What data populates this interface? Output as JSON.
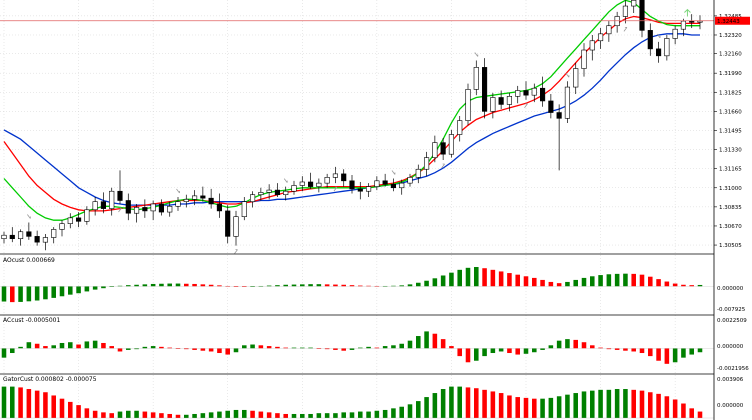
{
  "colors": {
    "bull": "#008000",
    "bear": "#ff0000",
    "jaw": "#0033cc",
    "teeth": "#ff0000",
    "lips": "#00cc00",
    "price_line": "#e06060",
    "grid": "#c8c8c8",
    "fractal": "#9a9a9a",
    "signal_arrow": "#7cd67c"
  },
  "main_panel": {
    "price_axis": [
      "1.32485",
      "1.32320",
      "1.32160",
      "1.31990",
      "1.31825",
      "1.31660",
      "1.31495",
      "1.31330",
      "1.31165",
      "1.31000",
      "1.30835",
      "1.30670",
      "1.30505"
    ],
    "current_price": "1.32443",
    "price_min": 1.30445,
    "price_max": 1.32605,
    "current_price_value": 1.32443
  },
  "indicators": [
    {
      "name": "ac",
      "label": "AOcust 0.000669",
      "axis": [
        "0.000000",
        "-0.007925"
      ],
      "scale_min": -0.0122,
      "scale_max": 0.0101,
      "zero": 0
    },
    {
      "name": "ao",
      "label": "ACcust -0.0005001",
      "axis": [
        "0.0022509",
        "0.000000",
        "-0.0021956"
      ],
      "scale_min": -0.0028,
      "scale_max": 0.0029,
      "zero": 0
    },
    {
      "name": "gator",
      "label": "GatorCust 0.000802 -0.000075",
      "axis": [
        "0.003906",
        "0.000000"
      ],
      "scale_min": 0,
      "scale_max": 0.0041,
      "zero": 0
    }
  ],
  "chart_data": {
    "type": "candlestick",
    "bars": 85,
    "ohlc": [
      [
        1.3056,
        1.3062,
        1.3052,
        1.3059
      ],
      [
        1.3059,
        1.3066,
        1.3053,
        1.3056
      ],
      [
        1.3056,
        1.3064,
        1.305,
        1.3062
      ],
      [
        1.3062,
        1.307,
        1.3055,
        1.3058
      ],
      [
        1.3058,
        1.3063,
        1.305,
        1.3053
      ],
      [
        1.3053,
        1.306,
        1.3046,
        1.3057
      ],
      [
        1.3057,
        1.3066,
        1.3052,
        1.3064
      ],
      [
        1.3064,
        1.3072,
        1.3058,
        1.3069
      ],
      [
        1.3069,
        1.3078,
        1.3065,
        1.3074
      ],
      [
        1.3074,
        1.3079,
        1.3066,
        1.3071
      ],
      [
        1.3071,
        1.3084,
        1.3068,
        1.3081
      ],
      [
        1.3081,
        1.3092,
        1.3076,
        1.3088
      ],
      [
        1.3088,
        1.3096,
        1.3078,
        1.3082
      ],
      [
        1.3082,
        1.31,
        1.3076,
        1.3097
      ],
      [
        1.3097,
        1.3115,
        1.3086,
        1.3089
      ],
      [
        1.3089,
        1.3095,
        1.3072,
        1.3078
      ],
      [
        1.3078,
        1.3086,
        1.307,
        1.3083
      ],
      [
        1.3083,
        1.309,
        1.3074,
        1.308
      ],
      [
        1.308,
        1.3089,
        1.3072,
        1.3086
      ],
      [
        1.3086,
        1.309,
        1.3076,
        1.3079
      ],
      [
        1.3079,
        1.3088,
        1.3075,
        1.3084
      ],
      [
        1.3084,
        1.3092,
        1.308,
        1.3088
      ],
      [
        1.3088,
        1.3094,
        1.3083,
        1.309
      ],
      [
        1.309,
        1.3098,
        1.3085,
        1.3093
      ],
      [
        1.3093,
        1.3101,
        1.3088,
        1.3091
      ],
      [
        1.3091,
        1.3099,
        1.3082,
        1.3086
      ],
      [
        1.3086,
        1.3095,
        1.3074,
        1.308
      ],
      [
        1.308,
        1.3085,
        1.3052,
        1.3058
      ],
      [
        1.3058,
        1.308,
        1.305,
        1.3075
      ],
      [
        1.3075,
        1.3092,
        1.3072,
        1.3088
      ],
      [
        1.3088,
        1.3097,
        1.3083,
        1.3094
      ],
      [
        1.3094,
        1.31,
        1.3089,
        1.3096
      ],
      [
        1.3096,
        1.3103,
        1.309,
        1.3098
      ],
      [
        1.3098,
        1.3104,
        1.3092,
        1.3094
      ],
      [
        1.3094,
        1.3101,
        1.3089,
        1.3097
      ],
      [
        1.3097,
        1.3106,
        1.3094,
        1.3102
      ],
      [
        1.3102,
        1.311,
        1.3097,
        1.3105
      ],
      [
        1.3105,
        1.3113,
        1.3099,
        1.3101
      ],
      [
        1.3101,
        1.3108,
        1.3096,
        1.3104
      ],
      [
        1.3104,
        1.3112,
        1.31,
        1.3109
      ],
      [
        1.3109,
        1.3118,
        1.3104,
        1.3112
      ],
      [
        1.3112,
        1.3116,
        1.3101,
        1.3106
      ],
      [
        1.3106,
        1.3111,
        1.3095,
        1.3099
      ],
      [
        1.3099,
        1.3105,
        1.309,
        1.3097
      ],
      [
        1.3097,
        1.3104,
        1.3092,
        1.3101
      ],
      [
        1.3101,
        1.311,
        1.3098,
        1.3106
      ],
      [
        1.3106,
        1.3112,
        1.3101,
        1.3103
      ],
      [
        1.3103,
        1.3108,
        1.3097,
        1.31
      ],
      [
        1.31,
        1.3107,
        1.3094,
        1.3104
      ],
      [
        1.3104,
        1.3112,
        1.3101,
        1.3109
      ],
      [
        1.3109,
        1.312,
        1.3104,
        1.3116
      ],
      [
        1.3116,
        1.3131,
        1.311,
        1.3126
      ],
      [
        1.3126,
        1.3145,
        1.3122,
        1.3139
      ],
      [
        1.3139,
        1.3143,
        1.3124,
        1.3129
      ],
      [
        1.3129,
        1.315,
        1.3126,
        1.3146
      ],
      [
        1.3146,
        1.3162,
        1.314,
        1.3158
      ],
      [
        1.3158,
        1.319,
        1.3154,
        1.3185
      ],
      [
        1.3185,
        1.321,
        1.318,
        1.3204
      ],
      [
        1.3204,
        1.3212,
        1.316,
        1.3166
      ],
      [
        1.3166,
        1.3182,
        1.316,
        1.3178
      ],
      [
        1.3178,
        1.3184,
        1.3168,
        1.3172
      ],
      [
        1.3172,
        1.3182,
        1.3166,
        1.3179
      ],
      [
        1.3179,
        1.3188,
        1.3173,
        1.3184
      ],
      [
        1.3184,
        1.3192,
        1.3176,
        1.318
      ],
      [
        1.318,
        1.319,
        1.3174,
        1.3186
      ],
      [
        1.3186,
        1.3196,
        1.317,
        1.3175
      ],
      [
        1.3175,
        1.3181,
        1.316,
        1.3165
      ],
      [
        1.3165,
        1.3172,
        1.3115,
        1.316
      ],
      [
        1.316,
        1.3192,
        1.3156,
        1.3187
      ],
      [
        1.3187,
        1.3208,
        1.3181,
        1.3203
      ],
      [
        1.3203,
        1.3225,
        1.3196,
        1.3219
      ],
      [
        1.3219,
        1.3232,
        1.321,
        1.3227
      ],
      [
        1.3227,
        1.3238,
        1.322,
        1.3233
      ],
      [
        1.3233,
        1.3244,
        1.3226,
        1.324
      ],
      [
        1.324,
        1.3252,
        1.3234,
        1.3248
      ],
      [
        1.3248,
        1.3262,
        1.3242,
        1.3257
      ],
      [
        1.3257,
        1.3268,
        1.3251,
        1.3262
      ],
      [
        1.3262,
        1.3266,
        1.323,
        1.3236
      ],
      [
        1.3236,
        1.3242,
        1.3214,
        1.322
      ],
      [
        1.322,
        1.3226,
        1.3208,
        1.3214
      ],
      [
        1.3214,
        1.3232,
        1.321,
        1.3229
      ],
      [
        1.3229,
        1.324,
        1.3224,
        1.3237
      ],
      [
        1.3237,
        1.3246,
        1.3231,
        1.3244
      ],
      [
        1.3244,
        1.325,
        1.3238,
        1.3243
      ],
      [
        1.3243,
        1.3249,
        1.3237,
        1.3244
      ]
    ],
    "fractal_bars": [
      3,
      14,
      21,
      28,
      34,
      40,
      47,
      53,
      57,
      63,
      68,
      75,
      79
    ],
    "ac_values": [
      -0.0075,
      -0.0078,
      -0.0077,
      -0.0074,
      -0.007,
      -0.0064,
      -0.0057,
      -0.0049,
      -0.0041,
      -0.0034,
      -0.0025,
      -0.0016,
      -0.0009,
      -0.0002,
      0.0003,
      0.0006,
      0.0008,
      0.001,
      0.0012,
      0.0013,
      0.0014,
      0.0014,
      0.0013,
      0.0012,
      0.001,
      0.0008,
      0.0005,
      0.0002,
      -0.0001,
      -0.0003,
      -0.0001,
      0.0002,
      0.0004,
      0.0006,
      0.0008,
      0.0009,
      0.001,
      0.0011,
      0.0011,
      0.001,
      0.0009,
      0.0008,
      0.0006,
      0.0004,
      0.0003,
      0.0002,
      0.0002,
      0.0003,
      0.0005,
      0.001,
      0.0018,
      0.0028,
      0.004,
      0.0054,
      0.0068,
      0.0082,
      0.0092,
      0.0096,
      0.009,
      0.0082,
      0.0074,
      0.0066,
      0.0058,
      0.005,
      0.0042,
      0.0032,
      0.0022,
      0.0016,
      0.0022,
      0.0032,
      0.0042,
      0.005,
      0.0056,
      0.006,
      0.0062,
      0.0063,
      0.0062,
      0.0058,
      0.0048,
      0.0036,
      0.0024,
      0.0014,
      0.0008,
      0.0006,
      0.0007
    ],
    "ao_values": [
      -0.0012,
      -0.0006,
      0.0002,
      0.0008,
      0.0006,
      0.0003,
      0.0004,
      0.0007,
      0.0008,
      0.0005,
      0.0009,
      0.001,
      0.0007,
      0.0003,
      -0.0004,
      -0.0002,
      -0.0001,
      0.0002,
      0.0003,
      0.0002,
      0.0001,
      0.0,
      -0.0001,
      -0.0002,
      -0.0003,
      -0.0004,
      -0.0006,
      -0.0008,
      -0.0005,
      0.0004,
      0.0005,
      0.0004,
      0.0003,
      0.0002,
      0.0001,
      0.0001,
      0.0001,
      0.0001,
      0.0,
      -0.0001,
      -0.0002,
      -0.0003,
      -0.0002,
      0.0001,
      0.0002,
      0.0001,
      0.0003,
      0.0004,
      0.0006,
      0.001,
      0.0016,
      0.0022,
      0.0019,
      0.0012,
      0.0003,
      -0.001,
      -0.0018,
      -0.0016,
      -0.001,
      -0.0006,
      -0.0004,
      -0.0006,
      -0.0008,
      -0.0007,
      -0.0005,
      -0.0002,
      0.0004,
      0.001,
      0.0012,
      0.0011,
      0.0008,
      0.0004,
      0.0001,
      -0.0001,
      -0.0002,
      -0.0003,
      -0.0004,
      -0.0006,
      -0.001,
      -0.0016,
      -0.002,
      -0.0018,
      -0.0012,
      -0.0008,
      -0.0005
    ],
    "gator_values": [
      0.0039,
      0.0039,
      0.0038,
      0.0036,
      0.0034,
      0.0032,
      0.0028,
      0.0024,
      0.002,
      0.0016,
      0.0012,
      0.0009,
      0.0007,
      0.0006,
      0.0008,
      0.0009,
      0.0009,
      0.0008,
      0.0007,
      0.0006,
      0.0005,
      0.0004,
      0.0004,
      0.0005,
      0.0006,
      0.0007,
      0.0008,
      0.0009,
      0.001,
      0.001,
      0.0009,
      0.0008,
      0.0007,
      0.0006,
      0.0005,
      0.0005,
      0.0005,
      0.0005,
      0.0006,
      0.0006,
      0.0006,
      0.0007,
      0.0007,
      0.0008,
      0.0008,
      0.0009,
      0.001,
      0.0012,
      0.0014,
      0.0017,
      0.0021,
      0.0026,
      0.0031,
      0.0036,
      0.0039,
      0.0039,
      0.0038,
      0.0037,
      0.0035,
      0.0033,
      0.0031,
      0.0028,
      0.0026,
      0.0025,
      0.0024,
      0.0024,
      0.0025,
      0.0027,
      0.0029,
      0.0031,
      0.0033,
      0.0034,
      0.0035,
      0.0035,
      0.0036,
      0.0036,
      0.0035,
      0.0034,
      0.0032,
      0.003,
      0.0027,
      0.0023,
      0.0018,
      0.0012,
      0.0008
    ],
    "series": [
      {
        "name": "jaw",
        "values": [
          1.315,
          1.3146,
          1.3142,
          1.3136,
          1.313,
          1.3124,
          1.3118,
          1.3112,
          1.3106,
          1.31,
          1.3096,
          1.3092,
          1.3089,
          1.3087,
          1.3086,
          1.3085,
          1.3085,
          1.3085,
          1.3085,
          1.3085,
          1.3085,
          1.3086,
          1.3086,
          1.3087,
          1.3087,
          1.3088,
          1.3088,
          1.3088,
          1.3088,
          1.3088,
          1.3088,
          1.3089,
          1.3089,
          1.309,
          1.309,
          1.3091,
          1.3092,
          1.3093,
          1.3094,
          1.3095,
          1.3096,
          1.3097,
          1.3098,
          1.3099,
          1.31,
          1.3101,
          1.3102,
          1.3103,
          1.3104,
          1.3106,
          1.3108,
          1.311,
          1.3113,
          1.3117,
          1.3122,
          1.3128,
          1.3134,
          1.3139,
          1.3143,
          1.3147,
          1.315,
          1.3153,
          1.3156,
          1.3159,
          1.3162,
          1.3164,
          1.3166,
          1.3168,
          1.3171,
          1.3175,
          1.318,
          1.3186,
          1.3193,
          1.3201,
          1.3208,
          1.3215,
          1.3221,
          1.3226,
          1.323,
          1.3232,
          1.3233,
          1.3233,
          1.3233,
          1.3232,
          1.3232
        ]
      },
      {
        "name": "teeth",
        "values": [
          1.314,
          1.313,
          1.312,
          1.311,
          1.3102,
          1.3096,
          1.309,
          1.3086,
          1.3083,
          1.3081,
          1.308,
          1.308,
          1.308,
          1.3081,
          1.3082,
          1.3083,
          1.3084,
          1.3085,
          1.3086,
          1.3087,
          1.3088,
          1.3089,
          1.3089,
          1.3089,
          1.3089,
          1.3088,
          1.3087,
          1.3086,
          1.3086,
          1.3087,
          1.3088,
          1.309,
          1.3092,
          1.3094,
          1.3096,
          1.3097,
          1.3098,
          1.3099,
          1.31,
          1.3101,
          1.3101,
          1.3101,
          1.3101,
          1.3101,
          1.3101,
          1.3102,
          1.3103,
          1.3104,
          1.3106,
          1.3109,
          1.3113,
          1.3118,
          1.3125,
          1.3132,
          1.314,
          1.3148,
          1.3154,
          1.3159,
          1.3162,
          1.3165,
          1.3167,
          1.3169,
          1.3171,
          1.3173,
          1.3176,
          1.318,
          1.3185,
          1.3192,
          1.32,
          1.3208,
          1.3216,
          1.3223,
          1.323,
          1.3236,
          1.3242,
          1.3246,
          1.3248,
          1.3247,
          1.3245,
          1.3243,
          1.3242,
          1.3242,
          1.3242,
          1.3242,
          1.3242
        ]
      },
      {
        "name": "lips",
        "values": [
          1.3108,
          1.31,
          1.3092,
          1.3084,
          1.3078,
          1.3074,
          1.3072,
          1.3072,
          1.3074,
          1.3077,
          1.308,
          1.3082,
          1.3084,
          1.3084,
          1.3083,
          1.3082,
          1.3081,
          1.3082,
          1.3083,
          1.3085,
          1.3087,
          1.3089,
          1.309,
          1.309,
          1.3089,
          1.3087,
          1.3085,
          1.3083,
          1.3084,
          1.3087,
          1.3091,
          1.3094,
          1.3096,
          1.3097,
          1.3098,
          1.3099,
          1.31,
          1.31,
          1.31,
          1.31,
          1.31,
          1.31,
          1.31,
          1.31,
          1.31,
          1.3101,
          1.3102,
          1.3103,
          1.3105,
          1.3108,
          1.3113,
          1.312,
          1.313,
          1.3142,
          1.3156,
          1.3168,
          1.3175,
          1.3178,
          1.3179,
          1.318,
          1.3181,
          1.3182,
          1.3183,
          1.3184,
          1.3186,
          1.319,
          1.3196,
          1.3204,
          1.3212,
          1.322,
          1.3228,
          1.3236,
          1.3244,
          1.3252,
          1.3258,
          1.3262,
          1.326,
          1.3254,
          1.3248,
          1.3244,
          1.3241,
          1.324,
          1.324,
          1.324,
          1.324
        ]
      }
    ]
  }
}
